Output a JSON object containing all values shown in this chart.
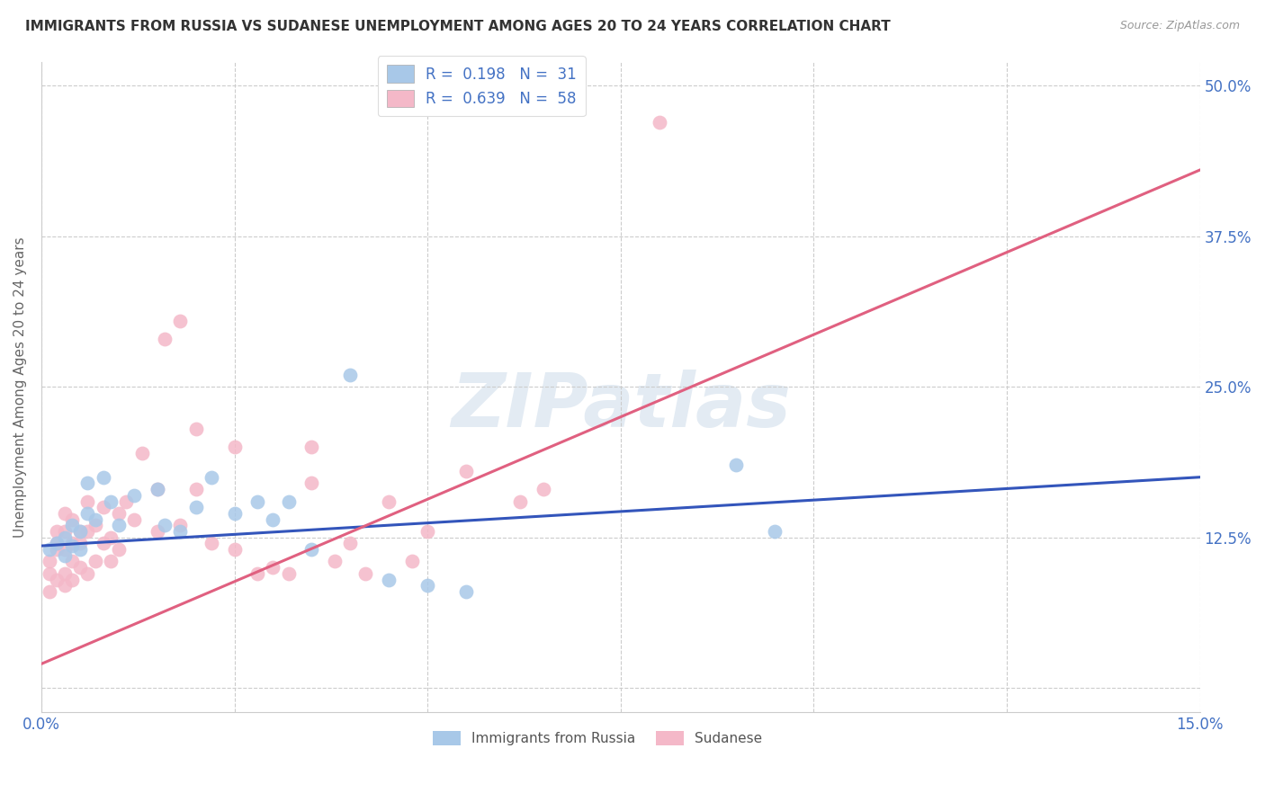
{
  "title": "IMMIGRANTS FROM RUSSIA VS SUDANESE UNEMPLOYMENT AMONG AGES 20 TO 24 YEARS CORRELATION CHART",
  "source": "Source: ZipAtlas.com",
  "ylabel": "Unemployment Among Ages 20 to 24 years",
  "xlim": [
    0.0,
    0.15
  ],
  "ylim": [
    -0.02,
    0.52
  ],
  "yticks": [
    0.0,
    0.125,
    0.25,
    0.375,
    0.5
  ],
  "ytick_labels": [
    "",
    "12.5%",
    "25.0%",
    "37.5%",
    "50.0%"
  ],
  "xticks": [
    0.0,
    0.025,
    0.05,
    0.075,
    0.1,
    0.125,
    0.15
  ],
  "xtick_labels": [
    "0.0%",
    "",
    "",
    "",
    "",
    "",
    "15.0%"
  ],
  "title_fontsize": 11,
  "source_fontsize": 9,
  "axis_color": "#4472c4",
  "blue_dot_color": "#a8c8e8",
  "pink_dot_color": "#f4b8c8",
  "blue_line_color": "#3355bb",
  "pink_line_color": "#e06080",
  "R_blue": 0.198,
  "N_blue": 31,
  "R_pink": 0.639,
  "N_pink": 58,
  "legend_label_blue": "Immigrants from Russia",
  "legend_label_pink": "Sudanese",
  "blue_trend_x0": 0.0,
  "blue_trend_y0": 0.118,
  "blue_trend_x1": 0.15,
  "blue_trend_y1": 0.175,
  "pink_trend_x0": 0.0,
  "pink_trend_y0": 0.02,
  "pink_trend_x1": 0.15,
  "pink_trend_y1": 0.43,
  "blue_scatter_x": [
    0.001,
    0.002,
    0.003,
    0.003,
    0.004,
    0.004,
    0.005,
    0.005,
    0.006,
    0.006,
    0.007,
    0.008,
    0.009,
    0.01,
    0.012,
    0.015,
    0.016,
    0.018,
    0.02,
    0.022,
    0.025,
    0.028,
    0.03,
    0.032,
    0.035,
    0.04,
    0.045,
    0.05,
    0.055,
    0.09,
    0.095
  ],
  "blue_scatter_y": [
    0.115,
    0.12,
    0.125,
    0.11,
    0.118,
    0.135,
    0.13,
    0.115,
    0.17,
    0.145,
    0.14,
    0.175,
    0.155,
    0.135,
    0.16,
    0.165,
    0.135,
    0.13,
    0.15,
    0.175,
    0.145,
    0.155,
    0.14,
    0.155,
    0.115,
    0.26,
    0.09,
    0.085,
    0.08,
    0.185,
    0.13
  ],
  "pink_scatter_x": [
    0.001,
    0.001,
    0.001,
    0.002,
    0.002,
    0.002,
    0.002,
    0.003,
    0.003,
    0.003,
    0.003,
    0.003,
    0.004,
    0.004,
    0.004,
    0.004,
    0.005,
    0.005,
    0.005,
    0.006,
    0.006,
    0.006,
    0.007,
    0.007,
    0.008,
    0.008,
    0.009,
    0.009,
    0.01,
    0.01,
    0.011,
    0.012,
    0.013,
    0.015,
    0.015,
    0.016,
    0.018,
    0.018,
    0.02,
    0.02,
    0.022,
    0.025,
    0.025,
    0.028,
    0.03,
    0.032,
    0.035,
    0.035,
    0.038,
    0.04,
    0.042,
    0.045,
    0.048,
    0.05,
    0.055,
    0.062,
    0.065,
    0.08
  ],
  "pink_scatter_y": [
    0.08,
    0.095,
    0.105,
    0.09,
    0.115,
    0.12,
    0.13,
    0.085,
    0.095,
    0.115,
    0.13,
    0.145,
    0.09,
    0.105,
    0.12,
    0.14,
    0.1,
    0.12,
    0.13,
    0.095,
    0.13,
    0.155,
    0.105,
    0.135,
    0.12,
    0.15,
    0.105,
    0.125,
    0.115,
    0.145,
    0.155,
    0.14,
    0.195,
    0.13,
    0.165,
    0.29,
    0.135,
    0.305,
    0.165,
    0.215,
    0.12,
    0.115,
    0.2,
    0.095,
    0.1,
    0.095,
    0.17,
    0.2,
    0.105,
    0.12,
    0.095,
    0.155,
    0.105,
    0.13,
    0.18,
    0.155,
    0.165,
    0.47
  ],
  "watermark_text": "ZIPatlas",
  "background_color": "#ffffff",
  "grid_color": "#cccccc"
}
